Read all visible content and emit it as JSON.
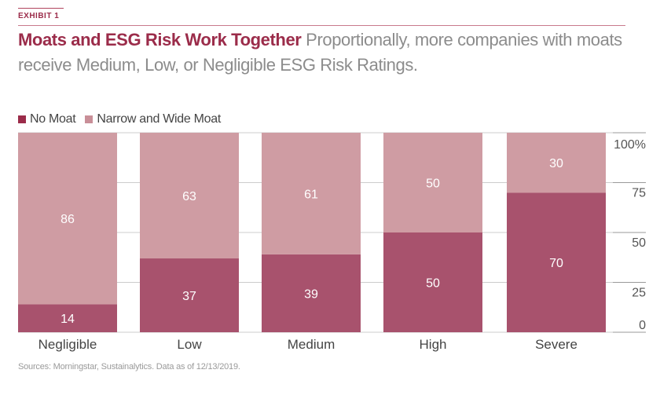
{
  "header": {
    "exhibit_label": "EXHIBIT 1",
    "title_bold": "Moats and ESG Risk Work Together",
    "title_rest": " Proportionally, more companies with moats receive Medium, Low, or Negligible ESG Risk Ratings."
  },
  "footer": {
    "source": "Sources: Morningstar, Sustainalytics. Data as of 12/13/2019."
  },
  "colors": {
    "accent": "#9b2c4a",
    "no_moat": "#a8526d",
    "narrow_wide_moat": "#cf9ca3",
    "legend_no_moat": "#9b2c4a",
    "legend_narrow_wide": "#c98f98",
    "label_text": "#ffffff",
    "grid": "#cccccc"
  },
  "chart_data": {
    "type": "bar",
    "stacked": true,
    "title": "Moats and ESG Risk Work Together",
    "xlabel": "",
    "ylabel": "",
    "categories": [
      "Negligible",
      "Low",
      "Medium",
      "High",
      "Severe"
    ],
    "series": [
      {
        "name": "No Moat",
        "values": [
          14,
          37,
          39,
          50,
          70
        ]
      },
      {
        "name": "Narrow and Wide Moat",
        "values": [
          86,
          63,
          61,
          50,
          30
        ]
      }
    ],
    "ylim": [
      0,
      100
    ],
    "y_ticks": [
      0,
      25,
      50,
      75,
      100
    ],
    "y_tick_labels": [
      "0",
      "25",
      "50",
      "75",
      "100%"
    ],
    "y_axis_position": "right",
    "grid": true,
    "legend": [
      "No Moat",
      "Narrow and Wide Moat"
    ],
    "legend_position": "top-left"
  }
}
